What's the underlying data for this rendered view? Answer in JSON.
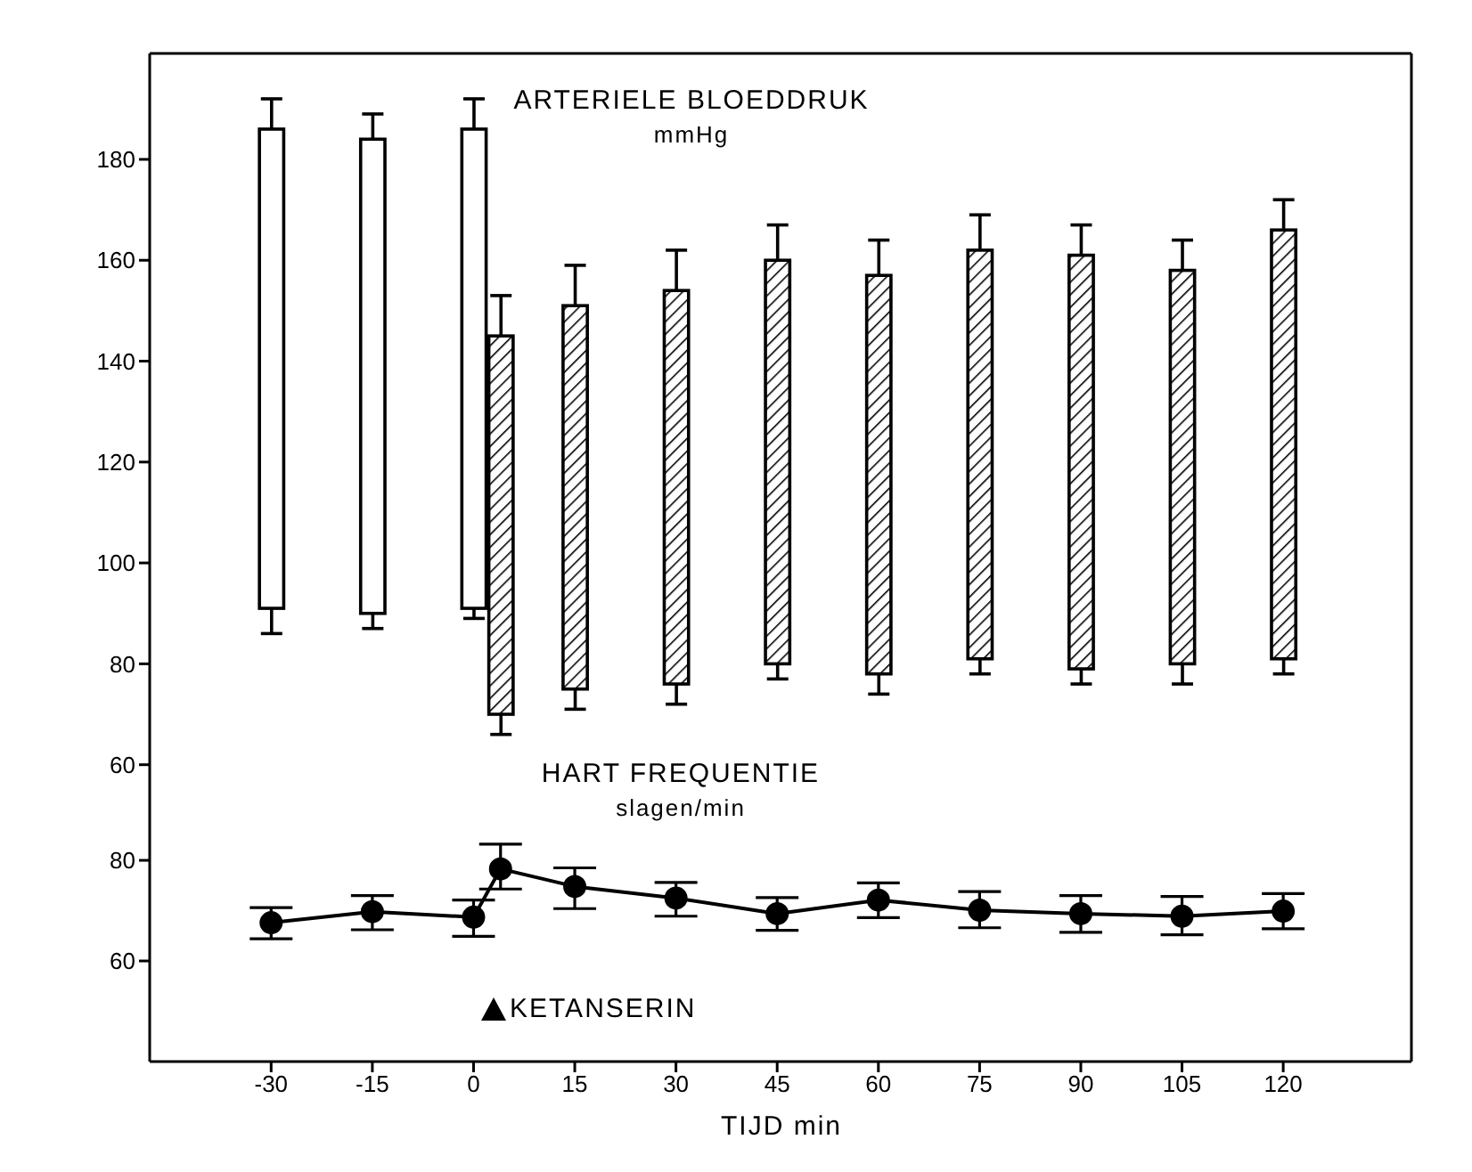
{
  "chart_data": [
    {
      "type": "bar",
      "annotations": [
        "ARTERIELE BLOEDDRUK",
        "mmHg"
      ],
      "xlim": [
        -48,
        139
      ],
      "ylim": [
        58,
        201
      ],
      "yticks": [
        60,
        80,
        100,
        120,
        140,
        160,
        180
      ],
      "tick_labels": "y",
      "series": [
        {
          "color": "#ffffff",
          "x": [
            -30,
            -15,
            0
          ],
          "base": [
            91,
            90,
            91
          ],
          "values": [
            95,
            94,
            95
          ],
          "errors": [
            [
              86,
              192
            ],
            [
              87,
              189
            ],
            [
              89,
              192
            ]
          ]
        },
        {
          "color": "#000000",
          "x": [
            4,
            15,
            30,
            45,
            60,
            75,
            90,
            105,
            120
          ],
          "base": [
            70,
            75,
            76,
            80,
            78,
            81,
            79,
            80,
            81
          ],
          "values": [
            75,
            76,
            78,
            80,
            79,
            81,
            82,
            78,
            85
          ],
          "errors": [
            [
              66,
              153
            ],
            [
              71,
              159
            ],
            [
              72,
              162
            ],
            [
              77,
              167
            ],
            [
              74,
              164
            ],
            [
              78,
              169
            ],
            [
              76,
              167
            ],
            [
              76,
              164
            ],
            [
              78,
              172
            ]
          ]
        }
      ]
    },
    {
      "type": "line",
      "annotations": [
        "HART FREQUENTIE",
        "slagen/min",
        "KETANSERIN"
      ],
      "xlabel": "TIJD min",
      "xlim": [
        -48,
        139
      ],
      "xticks": [
        -30,
        -15,
        0,
        15,
        30,
        45,
        60,
        75,
        90,
        105,
        120
      ],
      "ylim": [
        40,
        97
      ],
      "yticks": [
        60,
        80
      ],
      "marker": "circle",
      "line_style": "solid",
      "series": [
        {
          "color": "#000000",
          "x": [
            -30,
            -15,
            0,
            4,
            15,
            30,
            45,
            60,
            75,
            90,
            105,
            120
          ],
          "values": [
            67.6,
            69.8,
            68.7,
            78.3,
            74.8,
            72.5,
            69.4,
            72.1,
            70.1,
            69.4,
            68.9,
            69.9
          ],
          "errors": [
            [
              64.4,
              70.6
            ],
            [
              66.2,
              73
            ],
            [
              64.9,
              72.1
            ],
            [
              74.3,
              83.2
            ],
            [
              70.4,
              78.5
            ],
            [
              68.9,
              75.6
            ],
            [
              66.1,
              72.6
            ],
            [
              68.6,
              75.5
            ],
            [
              66.6,
              73.8
            ],
            [
              65.7,
              73
            ],
            [
              65.2,
              72.8
            ],
            [
              66.4,
              73.4
            ]
          ]
        }
      ]
    }
  ]
}
